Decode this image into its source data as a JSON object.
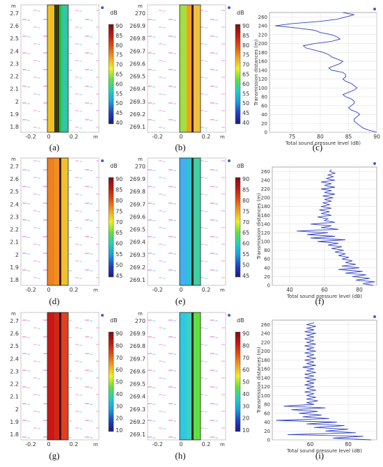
{
  "captions": [
    "(a)",
    "(b)",
    "(c)",
    "(d)",
    "(e)",
    "(f)",
    "(g)",
    "(h)",
    "(i)"
  ],
  "unit_db": "dB",
  "unit_m": "m",
  "colorbar": {
    "gradient": [
      "#1a1a80",
      "#2040c0",
      "#18a0e0",
      "#20d0c0",
      "#60e040",
      "#f0f020",
      "#f0a020",
      "#e05010",
      "#c01a10",
      "#7a1010"
    ],
    "ticks_a": [
      "90",
      "85",
      "80",
      "75",
      "70",
      "65",
      "60",
      "55",
      "50",
      "45",
      "40"
    ],
    "ticks_d": [
      "90",
      "85",
      "80",
      "75",
      "70",
      "65",
      "60",
      "55",
      "50",
      "45"
    ],
    "ticks_g": [
      "90",
      "80",
      "70",
      "60",
      "50",
      "40",
      "30",
      "20",
      "10"
    ]
  },
  "panel_a": {
    "y_ticks": [
      "2.7",
      "2.6",
      "2.5",
      "2.4",
      "2.3",
      "2.2",
      "2.1",
      "2",
      "1.9",
      "1.8"
    ],
    "x_ticks": [
      "-0.2",
      "0",
      "0.2"
    ],
    "bands": [
      "#f0c020",
      "#303818",
      "#20c040",
      "#30c8a0"
    ]
  },
  "panel_b": {
    "y_ticks": [
      "270",
      "269.9",
      "269.8",
      "269.7",
      "269.6",
      "269.5",
      "269.4",
      "269.3",
      "269.2",
      "269.1"
    ],
    "x_ticks": [
      "-0.2",
      "0",
      "0.2"
    ],
    "bands": [
      "#a0e040",
      "#f0a020",
      "#402010",
      "#f0c040"
    ]
  },
  "panel_d": {
    "y_ticks": [
      "2.7",
      "2.6",
      "2.5",
      "2.4",
      "2.3",
      "2.2",
      "2.1",
      "2",
      "1.9",
      "1.8"
    ],
    "x_ticks": [
      "-0.2",
      "0",
      "0.2"
    ],
    "bands": [
      "#f08020",
      "#f09020",
      "#402010",
      "#f0c030"
    ]
  },
  "panel_e": {
    "y_ticks": [
      "270",
      "269.9",
      "269.8",
      "269.7",
      "269.6",
      "269.5",
      "269.4",
      "269.3",
      "269.2",
      "269.1"
    ],
    "x_ticks": [
      "-0.2",
      "0",
      "0.2"
    ],
    "bands": [
      "#40b0f0",
      "#30c0d0",
      "#203020",
      "#40d0a0"
    ]
  },
  "panel_g": {
    "y_ticks": [
      "2.7",
      "2.6",
      "2.5",
      "2.4",
      "2.3",
      "2.2",
      "2.1",
      "2",
      "1.9",
      "1.8"
    ],
    "x_ticks": [
      "-0.2",
      "0",
      "0.2"
    ],
    "bands": [
      "#c81818",
      "#d02818",
      "#401010",
      "#e04020"
    ]
  },
  "panel_h": {
    "y_ticks": [
      "270",
      "269.9",
      "269.8",
      "269.7",
      "269.6",
      "269.5",
      "269.4",
      "269.3",
      "269.2",
      "269.1"
    ],
    "x_ticks": [
      "-0.2",
      "0",
      "0.2"
    ],
    "bands": [
      "#30c8e0",
      "#40d0c0",
      "#203020",
      "#60e040"
    ]
  },
  "chart_data": [
    {
      "type": "line",
      "panel": "c",
      "xlabel": "Total sound pressure level (dB)",
      "ylabel": "Transmission distances (m)",
      "xlim": [
        71,
        90
      ],
      "ylim": [
        0,
        270
      ],
      "x_ticks": [
        "75",
        "80",
        "85",
        "90"
      ],
      "y_ticks": [
        "0",
        "20",
        "40",
        "60",
        "80",
        "100",
        "120",
        "140",
        "160",
        "180",
        "200",
        "220",
        "240",
        "260"
      ],
      "series": [
        {
          "y": [
            0,
            5,
            10,
            15,
            20,
            25,
            30,
            35,
            40,
            45,
            50,
            55,
            60,
            65,
            70,
            75,
            80,
            85,
            90,
            95,
            100,
            105,
            110,
            115,
            120,
            125,
            130,
            135,
            140,
            145,
            150,
            155,
            160,
            165,
            170,
            175,
            180,
            185,
            190,
            195,
            200,
            205,
            210,
            215,
            220,
            225,
            230,
            235,
            240,
            245,
            250,
            255,
            260,
            265,
            270
          ],
          "x": [
            90,
            88.5,
            87.5,
            87,
            86.5,
            86,
            86,
            86.5,
            87,
            86.5,
            85.5,
            85,
            85.5,
            86,
            86,
            85.5,
            84.5,
            84,
            85,
            86,
            86.5,
            86,
            85.5,
            84.5,
            84,
            84.5,
            84.5,
            84,
            82,
            81.5,
            82.5,
            83.5,
            84,
            83,
            82,
            81.5,
            80.5,
            79,
            77.5,
            77,
            79,
            82,
            83.5,
            83,
            82,
            80,
            79,
            76,
            72,
            75,
            80,
            83,
            84.5,
            86,
            84
          ]
        }
      ]
    },
    {
      "type": "line",
      "panel": "f",
      "xlabel": "Total sound pressure level (dB)",
      "ylabel": "Transmission distances (m)",
      "xlim": [
        30,
        90
      ],
      "ylim": [
        0,
        270
      ],
      "x_ticks": [
        "40",
        "60",
        "80"
      ],
      "y_ticks": [
        "0",
        "20",
        "40",
        "60",
        "80",
        "100",
        "120",
        "140",
        "160",
        "180",
        "200",
        "220",
        "240",
        "260"
      ],
      "series": [
        {
          "y": [
            0,
            4,
            8,
            12,
            16,
            20,
            24,
            28,
            32,
            36,
            40,
            44,
            48,
            52,
            56,
            60,
            64,
            68,
            72,
            76,
            80,
            84,
            88,
            92,
            96,
            100,
            104,
            108,
            112,
            116,
            120,
            124,
            128,
            132,
            136,
            140,
            144,
            148,
            152,
            156,
            160,
            164,
            168,
            172,
            176,
            180,
            184,
            188,
            192,
            196,
            200,
            204,
            208,
            212,
            216,
            220,
            224,
            228,
            232,
            236,
            240,
            244,
            248,
            252,
            256,
            260,
            264
          ],
          "x": [
            88,
            82,
            89,
            78,
            86,
            76,
            84,
            72,
            82,
            68,
            80,
            70,
            78,
            72,
            76,
            70,
            74,
            68,
            72,
            66,
            71,
            64,
            70,
            62,
            68,
            56,
            72,
            52,
            66,
            50,
            62,
            44,
            68,
            58,
            64,
            52,
            66,
            60,
            62,
            56,
            64,
            58,
            63,
            57,
            64,
            58,
            63,
            59,
            64,
            60,
            65,
            59,
            66,
            60,
            64,
            58,
            66,
            60,
            64,
            58,
            66,
            61,
            65,
            62,
            66,
            63,
            64
          ]
        }
      ]
    },
    {
      "type": "line",
      "panel": "i",
      "xlabel": "Total sound pressure level (dB)",
      "ylabel": "Transmission distances (m)",
      "xlim": [
        40,
        95
      ],
      "ylim": [
        0,
        270
      ],
      "x_ticks": [
        "60",
        "80"
      ],
      "y_ticks": [
        "0",
        "20",
        "40",
        "60",
        "80",
        "100",
        "120",
        "140",
        "160",
        "180",
        "200",
        "220",
        "240",
        "260"
      ],
      "series": [
        {
          "y": [
            0,
            4,
            8,
            12,
            16,
            20,
            24,
            28,
            32,
            36,
            40,
            44,
            48,
            52,
            56,
            60,
            64,
            68,
            72,
            76,
            80,
            84,
            88,
            92,
            96,
            100,
            104,
            108,
            112,
            116,
            120,
            124,
            128,
            132,
            136,
            140,
            144,
            148,
            152,
            156,
            160,
            164,
            168,
            172,
            176,
            180,
            184,
            188,
            192,
            196,
            200,
            204,
            208,
            212,
            216,
            220,
            224,
            228,
            232,
            236,
            240,
            244,
            248,
            252,
            256,
            260,
            264
          ],
          "x": [
            92,
            72,
            88,
            48,
            84,
            68,
            80,
            62,
            78,
            58,
            74,
            42,
            70,
            56,
            66,
            54,
            64,
            50,
            68,
            46,
            62,
            58,
            64,
            58,
            63,
            58,
            62,
            57,
            63,
            58,
            62,
            57,
            62,
            58,
            63,
            57,
            62,
            57,
            63,
            58,
            62,
            56,
            63,
            58,
            62,
            57,
            63,
            58,
            62,
            57,
            63,
            58,
            62,
            57,
            63,
            58,
            62,
            57,
            62,
            58,
            63,
            57,
            62,
            58,
            63,
            58,
            62
          ]
        }
      ]
    }
  ]
}
